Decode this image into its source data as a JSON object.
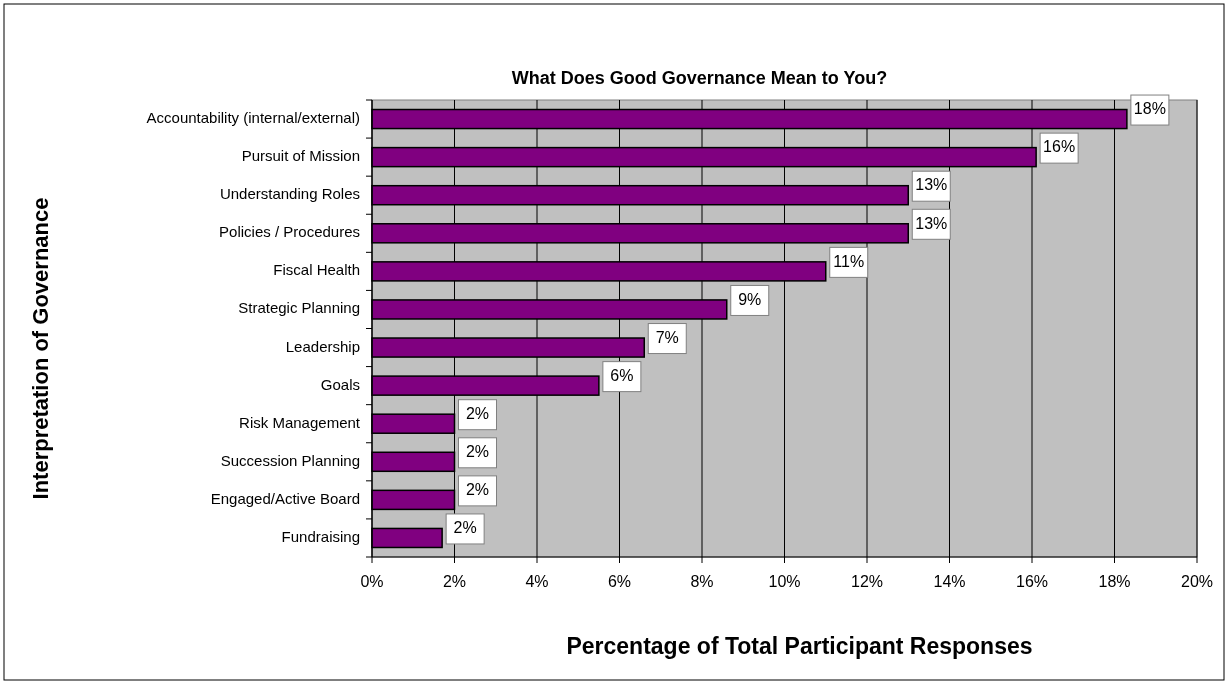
{
  "chart_data": {
    "type": "bar",
    "orientation": "horizontal",
    "title": "What Does Good Governance Mean to You?",
    "xlabel": "Percentage of Total Participant Responses",
    "ylabel": "Interpretation of Governance",
    "categories": [
      "Accountability (internal/external)",
      "Pursuit of Mission",
      "Understanding Roles",
      "Policies / Procedures",
      "Fiscal Health",
      "Strategic Planning",
      "Leadership",
      "Goals",
      "Risk Management",
      "Succession Planning",
      "Engaged/Active Board",
      "Fundraising"
    ],
    "values": [
      18.3,
      16.1,
      13,
      13,
      11,
      8.6,
      6.6,
      5.5,
      2,
      2,
      2,
      1.7
    ],
    "value_labels": [
      "18%",
      "16%",
      "13%",
      "13%",
      "11%",
      "9%",
      "7%",
      "6%",
      "2%",
      "2%",
      "2%",
      "2%"
    ],
    "color": "#800080",
    "xlim": [
      0,
      20
    ],
    "xticks": [
      {
        "value": 0,
        "label": "0%"
      },
      {
        "value": 2,
        "label": "2%"
      },
      {
        "value": 4,
        "label": "4%"
      },
      {
        "value": 6,
        "label": "6%"
      },
      {
        "value": 8,
        "label": "8%"
      },
      {
        "value": 10,
        "label": "10%"
      },
      {
        "value": 12,
        "label": "12%"
      },
      {
        "value": 14,
        "label": "14%"
      },
      {
        "value": 16,
        "label": "16%"
      },
      {
        "value": 18,
        "label": "18%"
      },
      {
        "value": 20,
        "label": "20%"
      }
    ],
    "grid": "x"
  }
}
